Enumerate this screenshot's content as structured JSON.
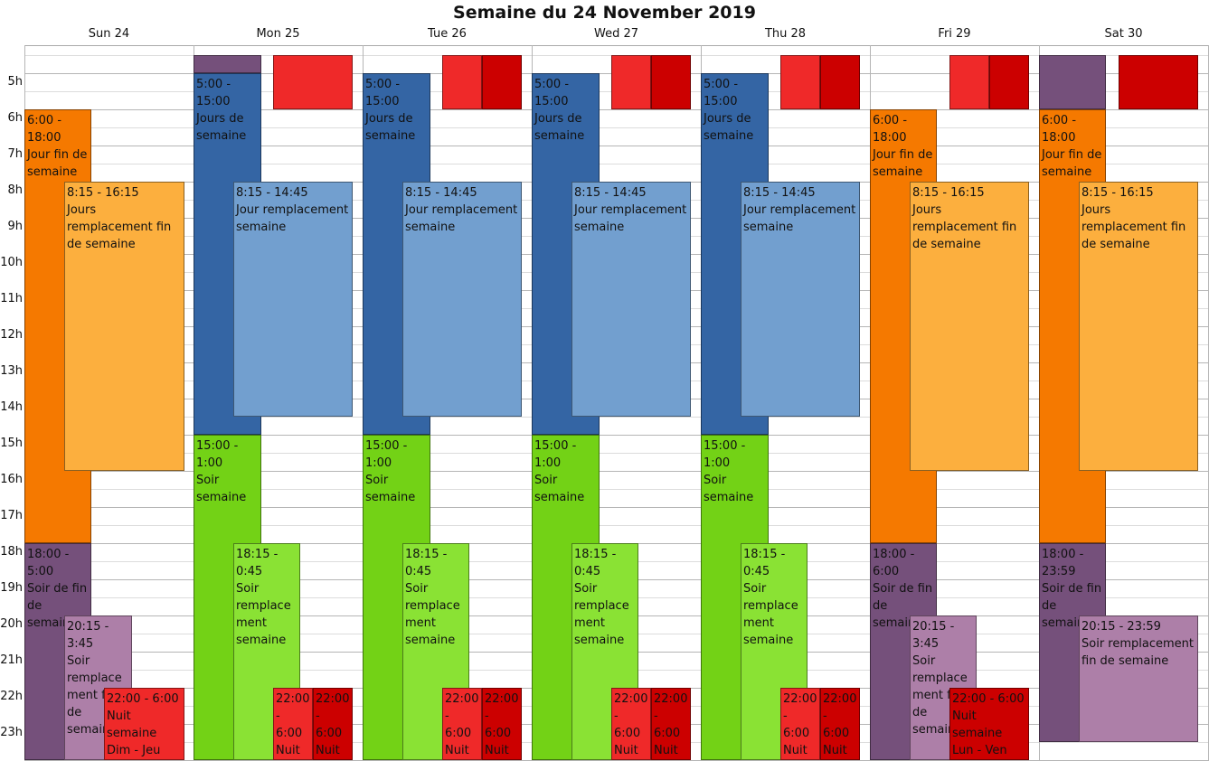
{
  "title": "Semaine du 24 November 2019",
  "hours": [
    "5h",
    "6h",
    "7h",
    "8h",
    "9h",
    "10h",
    "11h",
    "12h",
    "13h",
    "14h",
    "15h",
    "16h",
    "17h",
    "18h",
    "19h",
    "20h",
    "21h",
    "22h",
    "23h"
  ],
  "colors": {
    "orange": "#f57900",
    "lightorange": "#fcaf3e",
    "blue": "#3465a4",
    "lightblue": "#729fcf",
    "green": "#73d216",
    "lightgreen": "#8ae234",
    "purple": "#75507b",
    "lightpurple": "#ad7fa8",
    "red": "#ef2929",
    "darkred": "#cc0000"
  },
  "days": [
    {
      "label": "Sun 24",
      "events": [
        {
          "time": "6:00 - 18:00",
          "title": "Jour fin de semaine"
        },
        {
          "time": "8:15 - 16:15",
          "title": "Jours remplacement fin de semaine"
        },
        {
          "time": "18:00 - 5:00",
          "title": "Soir de fin de semaine"
        },
        {
          "time": "20:15 - 3:45",
          "title": "Soir remplacement fin de semaine"
        },
        {
          "time": "22:00 - 6:00",
          "title": "Nuit semaine Dim - Jeu"
        }
      ]
    },
    {
      "label": "Mon 25",
      "events": [
        {
          "time": "5:00 - 15:00",
          "title": "Jours de semaine"
        },
        {
          "time": "8:15 - 14:45",
          "title": "Jour remplacement semaine"
        },
        {
          "time": "15:00 - 1:00",
          "title": "Soir semaine"
        },
        {
          "time": "18:15 - 0:45",
          "title": "Soir remplacement semaine"
        },
        {
          "time": "22:00 - 6:00",
          "title": "Nuit semaine"
        },
        {
          "time": "22:00 - 6:00",
          "title": "Nuit"
        }
      ]
    },
    {
      "label": "Tue 26",
      "events": [
        {
          "time": "5:00 - 15:00",
          "title": "Jours de semaine"
        },
        {
          "time": "8:15 - 14:45",
          "title": "Jour remplacement semaine"
        },
        {
          "time": "15:00 - 1:00",
          "title": "Soir semaine"
        },
        {
          "time": "18:15 - 0:45",
          "title": "Soir remplacement semaine"
        },
        {
          "time": "22:00 - 6:00",
          "title": "Nuit semaine"
        },
        {
          "time": "22:00 - 6:00",
          "title": "Nuit"
        }
      ]
    },
    {
      "label": "Wed 27",
      "events": [
        {
          "time": "5:00 - 15:00",
          "title": "Jours de semaine"
        },
        {
          "time": "8:15 - 14:45",
          "title": "Jour remplacement semaine"
        },
        {
          "time": "15:00 - 1:00",
          "title": "Soir semaine"
        },
        {
          "time": "18:15 - 0:45",
          "title": "Soir remplacement semaine"
        },
        {
          "time": "22:00 - 6:00",
          "title": "Nuit semaine"
        },
        {
          "time": "22:00 - 6:00",
          "title": "Nuit"
        }
      ]
    },
    {
      "label": "Thu 28",
      "events": [
        {
          "time": "5:00 - 15:00",
          "title": "Jours de semaine"
        },
        {
          "time": "8:15 - 14:45",
          "title": "Jour remplacement semaine"
        },
        {
          "time": "15:00 - 1:00",
          "title": "Soir semaine"
        },
        {
          "time": "18:15 - 0:45",
          "title": "Soir remplacement semaine"
        },
        {
          "time": "22:00 - 6:00",
          "title": "Nuit semaine"
        },
        {
          "time": "22:00 - 6:00",
          "title": "Nuit"
        }
      ]
    },
    {
      "label": "Fri 29",
      "events": [
        {
          "time": "6:00 - 18:00",
          "title": "Jour fin de semaine"
        },
        {
          "time": "8:15 - 16:15",
          "title": "Jours remplacement fin de semaine"
        },
        {
          "time": "18:00 - 6:00",
          "title": "Soir de fin de semaine"
        },
        {
          "time": "20:15 - 3:45",
          "title": "Soir remplacement fin de semaine"
        },
        {
          "time": "22:00 - 6:00",
          "title": "Nuit semaine Lun - Ven"
        }
      ]
    },
    {
      "label": "Sat 30",
      "events": [
        {
          "time": "6:00 - 18:00",
          "title": "Jour fin de semaine"
        },
        {
          "time": "8:15 - 16:15",
          "title": "Jours remplacement fin de semaine"
        },
        {
          "time": "18:00 - 23:59",
          "title": "Soir de fin de semaine"
        },
        {
          "time": "20:15 - 23:59",
          "title": "Soir remplacement fin de semaine"
        }
      ]
    }
  ]
}
